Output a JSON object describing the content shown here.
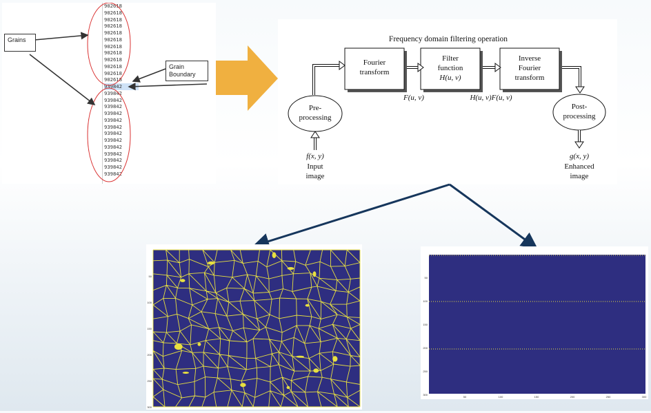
{
  "left_panel": {
    "grains_label": "Grains",
    "boundary_label_line1": "Grain",
    "boundary_label_line2": "Boundary",
    "numbers_top": [
      "902618",
      "902618",
      "902618",
      "902618",
      "902618",
      "902618",
      "902618",
      "902618",
      "902618",
      "902618",
      "902618",
      "902618"
    ],
    "numbers_transition": [
      "902618",
      "939842"
    ],
    "numbers_bottom": [
      "939842",
      "939842",
      "939842",
      "939842",
      "939842",
      "939842",
      "939842",
      "939842",
      "939842",
      "939842",
      "939842",
      "939842",
      "939842"
    ],
    "highlight_color": "#d93030"
  },
  "process_arrow_color": "#f0b040",
  "diagram": {
    "title": "Frequency domain filtering operation",
    "fourier_line1": "Fourier",
    "fourier_line2": "transform",
    "filter_line1": "Filter",
    "filter_line2": "function",
    "filter_line3": "H(u, v)",
    "inverse_line1": "Inverse",
    "inverse_line2": "Fourier",
    "inverse_line3": "transform",
    "pre_line1": "Pre-",
    "pre_line2": "processing",
    "post_line1": "Post-",
    "post_line2": "processing",
    "f_uv": "F(u, v)",
    "hf_uv": "H(u, v)F(u, v)",
    "f_xy": "f(x, y)",
    "input_line1": "Input",
    "input_line2": "image",
    "g_xy": "g(x, y)",
    "enhanced_line1": "Enhanced",
    "enhanced_line2": "image"
  },
  "connector_color": "#16365c",
  "plot_left": {
    "background_color": "#2e2e80",
    "boundary_color": "#e8e040",
    "y_ticks": [
      "50",
      "100",
      "150",
      "200",
      "250",
      "300"
    ]
  },
  "plot_right": {
    "background_color": "#2e2e80",
    "line_color": "#e8e040",
    "y_ticks": [
      "50",
      "100",
      "150",
      "200",
      "250",
      "300"
    ],
    "x_ticks": [
      "50",
      "100",
      "150",
      "200",
      "250",
      "300"
    ]
  }
}
